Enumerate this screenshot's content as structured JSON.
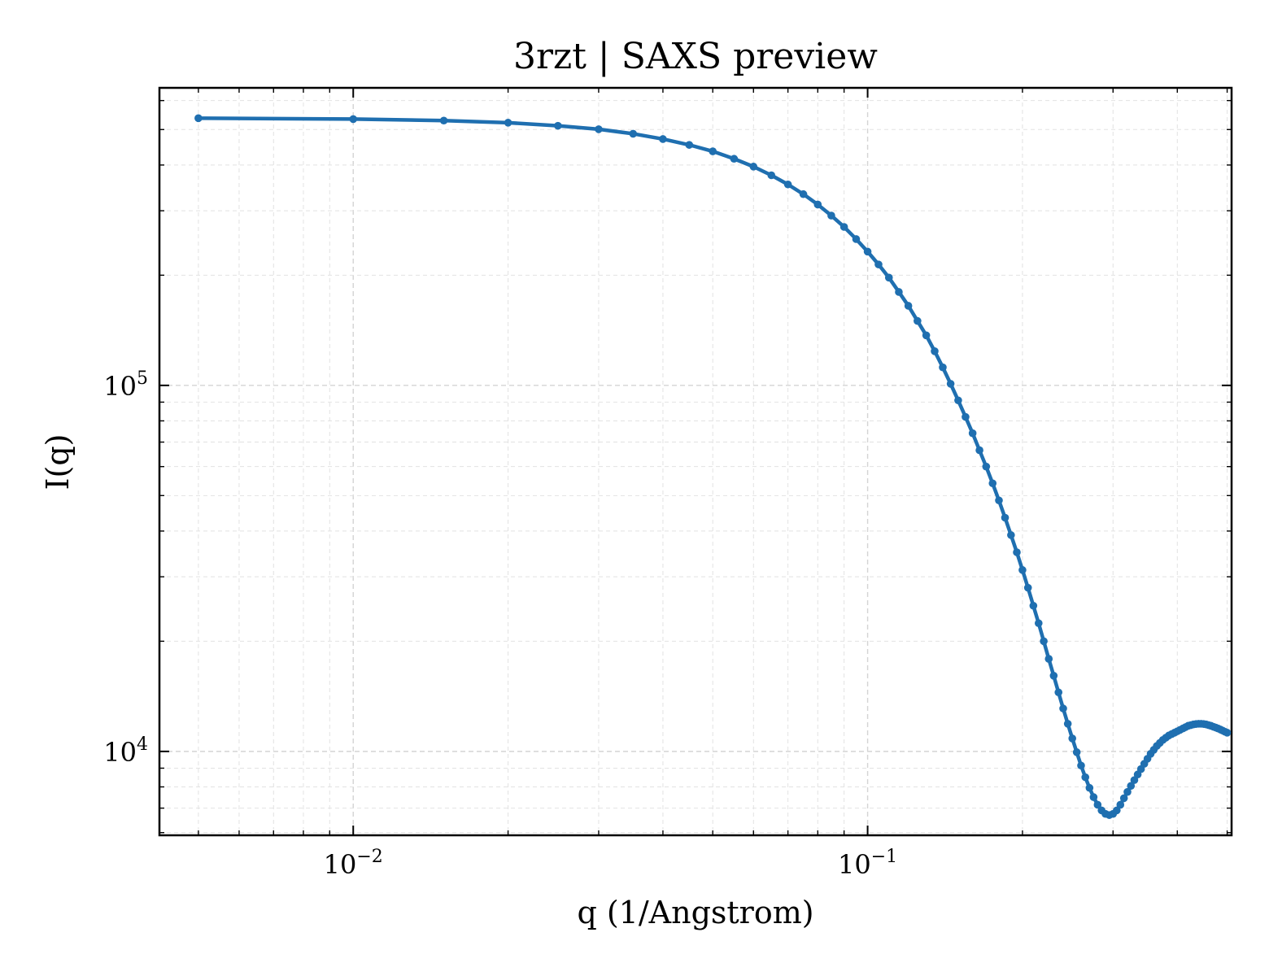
{
  "chart_data": {
    "type": "line",
    "title": "3rzt | SAXS preview",
    "xlabel": "q (1/Angstrom)",
    "ylabel": "I(q)",
    "xscale": "log",
    "yscale": "log",
    "xlim": [
      0.0042,
      0.51
    ],
    "ylim": [
      5900,
      650000
    ],
    "grid": true,
    "line_color": "#1f6fb0",
    "xticks": [
      {
        "value": 0.01,
        "base": "10",
        "exp": "−2"
      },
      {
        "value": 0.1,
        "base": "10",
        "exp": "−1"
      }
    ],
    "yticks": [
      {
        "value": 10000,
        "base": "10",
        "exp": "4"
      },
      {
        "value": 100000,
        "base": "10",
        "exp": "5"
      }
    ],
    "series": [
      {
        "x": [
          0.005,
          0.01,
          0.015,
          0.02,
          0.025,
          0.03,
          0.035,
          0.04,
          0.045,
          0.05,
          0.055,
          0.06,
          0.065,
          0.07,
          0.075,
          0.08,
          0.085,
          0.09,
          0.095,
          0.1,
          0.105,
          0.11,
          0.115,
          0.12,
          0.125,
          0.13,
          0.135,
          0.14,
          0.145,
          0.15,
          0.155,
          0.16,
          0.165,
          0.17,
          0.175,
          0.18,
          0.185,
          0.19,
          0.195,
          0.2,
          0.205,
          0.21,
          0.215,
          0.22,
          0.225,
          0.23,
          0.235,
          0.24,
          0.245,
          0.25,
          0.255,
          0.26,
          0.265,
          0.27,
          0.275,
          0.28,
          0.285,
          0.29,
          0.295,
          0.3,
          0.305,
          0.31,
          0.315,
          0.32,
          0.325,
          0.33,
          0.335,
          0.34,
          0.345,
          0.35,
          0.355,
          0.36,
          0.365,
          0.37,
          0.375,
          0.38,
          0.385,
          0.39,
          0.395,
          0.4,
          0.405,
          0.41,
          0.415,
          0.42,
          0.425,
          0.43,
          0.435,
          0.44,
          0.445,
          0.45,
          0.455,
          0.46,
          0.465,
          0.47,
          0.475,
          0.48,
          0.485,
          0.49,
          0.495,
          0.5
        ],
        "y": [
          537000,
          534000,
          529000,
          522000,
          512000,
          501000,
          487000,
          471000,
          454000,
          436000,
          416000,
          396000,
          375000,
          354000,
          333000,
          312000,
          291000,
          271000,
          251000,
          232000,
          214000,
          197000,
          180000,
          165000,
          150000,
          137000,
          124000,
          112000,
          101000,
          91000,
          82000,
          74000,
          66500,
          60000,
          54000,
          48500,
          43500,
          39000,
          35000,
          31300,
          28000,
          25000,
          22400,
          20000,
          17900,
          16100,
          14500,
          13100,
          11900,
          10850,
          9950,
          9150,
          8500,
          7950,
          7500,
          7150,
          6900,
          6750,
          6700,
          6750,
          6900,
          7150,
          7450,
          7750,
          8050,
          8350,
          8650,
          8950,
          9250,
          9550,
          9850,
          10100,
          10350,
          10550,
          10750,
          10900,
          11050,
          11150,
          11250,
          11350,
          11450,
          11550,
          11650,
          11750,
          11800,
          11850,
          11880,
          11900,
          11900,
          11880,
          11850,
          11800,
          11750,
          11680,
          11620,
          11550,
          11480,
          11400,
          11320,
          11250
        ]
      }
    ]
  }
}
